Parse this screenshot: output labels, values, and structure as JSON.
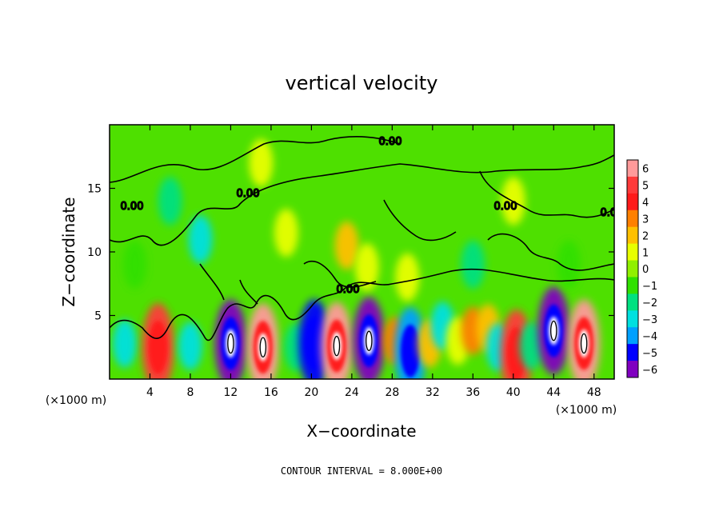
{
  "chart_data": {
    "type": "heatmap",
    "title": "vertical velocity",
    "xlabel": "X−coordinate",
    "ylabel": "Z−coordinate",
    "x_unit_left": "(×1000 m)",
    "x_unit_right": "(×1000 m)",
    "xlim": [
      0,
      50
    ],
    "ylim": [
      0,
      20
    ],
    "x_ticks": [
      4,
      8,
      12,
      16,
      20,
      24,
      28,
      32,
      36,
      40,
      44,
      48
    ],
    "y_ticks": [
      5,
      10,
      15
    ],
    "x_tick_labels": [
      "4",
      "8",
      "12",
      "16",
      "20",
      "24",
      "28",
      "32",
      "36",
      "40",
      "44",
      "48"
    ],
    "y_tick_labels": [
      "5",
      "10",
      "15"
    ],
    "contour_label": "0.00",
    "footer": "CONTOUR INTERVAL = 8.000E+00",
    "colorbar": {
      "levels": [
        6,
        5,
        4,
        3,
        2,
        1,
        0,
        -1,
        -2,
        -3,
        -4,
        -5,
        -6
      ],
      "labels": [
        "6",
        "5",
        "4",
        "3",
        "2",
        "1",
        "0",
        "−1",
        "−2",
        "−3",
        "−4",
        "−5",
        "−6"
      ],
      "colors": [
        "#ff9a9a",
        "#ff3a3a",
        "#ff1a1a",
        "#ff8000",
        "#ffc000",
        "#e8ff00",
        "#90f000",
        "#30e000",
        "#00e080",
        "#00e0e0",
        "#00a0ff",
        "#0000ff",
        "#8000c0"
      ]
    },
    "cells": [
      {
        "x": 1.5,
        "z": 2.8,
        "w": -3
      },
      {
        "x": 4.8,
        "z": 2.5,
        "w": 5
      },
      {
        "x": 8.0,
        "z": 2.6,
        "w": -3
      },
      {
        "x": 12.0,
        "z": 2.8,
        "w": -6
      },
      {
        "x": 15.2,
        "z": 2.5,
        "w": 6
      },
      {
        "x": 18.5,
        "z": 2.5,
        "w": -2
      },
      {
        "x": 20.3,
        "z": 2.8,
        "w": -5
      },
      {
        "x": 22.5,
        "z": 2.6,
        "w": 6
      },
      {
        "x": 25.7,
        "z": 3.0,
        "w": -6
      },
      {
        "x": 28.3,
        "z": 3.0,
        "w": 3
      },
      {
        "x": 29.8,
        "z": 2.2,
        "w": -4
      },
      {
        "x": 31.7,
        "z": 2.8,
        "w": 2
      },
      {
        "x": 33.0,
        "z": 4.2,
        "w": -3
      },
      {
        "x": 34.5,
        "z": 3.0,
        "w": 1
      },
      {
        "x": 36.0,
        "z": 3.8,
        "w": 3
      },
      {
        "x": 37.5,
        "z": 4.0,
        "w": 2
      },
      {
        "x": 38.5,
        "z": 2.5,
        "w": -3
      },
      {
        "x": 40.3,
        "z": 2.0,
        "w": 5
      },
      {
        "x": 41.8,
        "z": 2.6,
        "w": -2
      },
      {
        "x": 44.0,
        "z": 3.8,
        "w": -6
      },
      {
        "x": 47.0,
        "z": 2.8,
        "w": 6
      },
      {
        "x": 23.5,
        "z": 10.5,
        "w": 2
      },
      {
        "x": 25.5,
        "z": 8.8,
        "w": 1
      },
      {
        "x": 29.5,
        "z": 8.0,
        "w": 1
      },
      {
        "x": 17.5,
        "z": 11.5,
        "w": 1
      },
      {
        "x": 36.0,
        "z": 9.0,
        "w": -2
      },
      {
        "x": 45.5,
        "z": 9.0,
        "w": -1
      },
      {
        "x": 6.0,
        "z": 14.0,
        "w": -2
      },
      {
        "x": 9.0,
        "z": 11.0,
        "w": -3
      },
      {
        "x": 2.5,
        "z": 9.0,
        "w": -1
      },
      {
        "x": 40.0,
        "z": 14.0,
        "w": 1
      },
      {
        "x": 15.0,
        "z": 17.0,
        "w": 1
      }
    ]
  }
}
